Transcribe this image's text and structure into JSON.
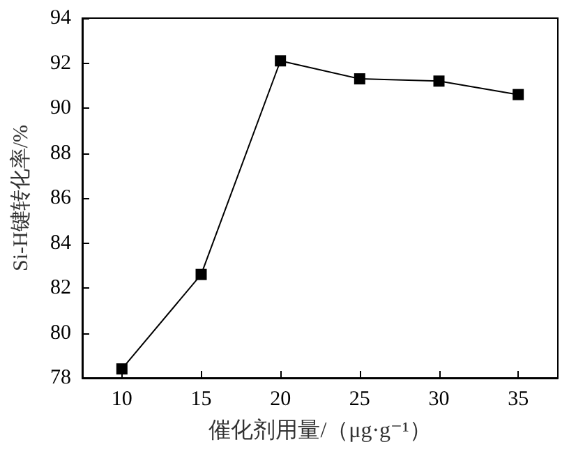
{
  "chart_data": {
    "type": "line",
    "xlabel": "催化剂用量/（μg·g⁻¹）",
    "ylabel": "Si-H键转化率/%",
    "x": [
      10,
      15,
      20,
      25,
      30,
      35
    ],
    "series": [
      {
        "color": "#000000",
        "values": [
          78.4,
          82.6,
          92.1,
          91.3,
          91.2,
          90.6
        ]
      }
    ],
    "xlim": [
      7.5,
      37.5
    ],
    "xticks": [
      10,
      15,
      20,
      25,
      30,
      35
    ],
    "ylim": [
      78,
      94
    ],
    "yticks": [
      78,
      80,
      82,
      84,
      86,
      88,
      90,
      92,
      94
    ],
    "marker": "square",
    "line_style": "solid",
    "grid": false
  }
}
